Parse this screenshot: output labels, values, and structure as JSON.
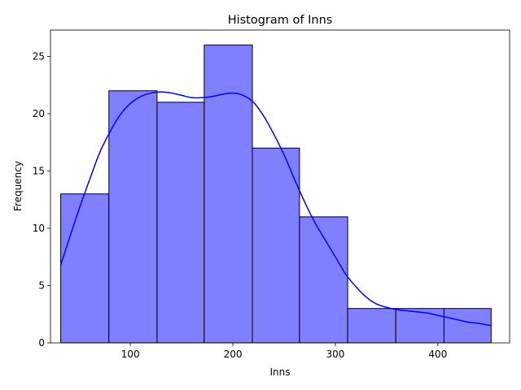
{
  "chart_data": {
    "type": "bar",
    "title": "Histogram of Inns",
    "xlabel": "Inns",
    "ylabel": "Frequency",
    "xlim": [
      22,
      470
    ],
    "ylim": [
      0,
      27.3
    ],
    "xticks": [
      100,
      200,
      300,
      400
    ],
    "yticks": [
      0,
      5,
      10,
      15,
      20,
      25
    ],
    "grid": false,
    "bins": [
      {
        "x0": 32,
        "x1": 79,
        "count": 13
      },
      {
        "x0": 79,
        "x1": 126,
        "count": 22
      },
      {
        "x0": 126,
        "x1": 172,
        "count": 21
      },
      {
        "x0": 172,
        "x1": 219,
        "count": 26
      },
      {
        "x0": 219,
        "x1": 265,
        "count": 17
      },
      {
        "x0": 265,
        "x1": 312,
        "count": 11
      },
      {
        "x0": 312,
        "x1": 359,
        "count": 3
      },
      {
        "x0": 359,
        "x1": 406,
        "count": 3
      },
      {
        "x0": 406,
        "x1": 452,
        "count": 3
      }
    ],
    "kde": {
      "x": [
        32,
        40,
        50,
        60,
        70,
        80,
        90,
        100,
        110,
        120,
        130,
        140,
        150,
        160,
        170,
        180,
        190,
        200,
        210,
        220,
        230,
        240,
        250,
        260,
        270,
        280,
        290,
        300,
        310,
        320,
        330,
        340,
        350,
        360,
        370,
        380,
        390,
        400,
        410,
        420,
        430,
        440,
        452
      ],
      "y": [
        6.8,
        9.0,
        11.7,
        14.2,
        16.6,
        18.4,
        19.9,
        20.9,
        21.5,
        21.8,
        21.9,
        21.8,
        21.6,
        21.4,
        21.4,
        21.5,
        21.7,
        21.8,
        21.6,
        21.0,
        19.8,
        18.2,
        16.4,
        14.3,
        12.3,
        10.5,
        9.0,
        7.5,
        6.0,
        4.9,
        4.0,
        3.4,
        3.1,
        2.9,
        2.8,
        2.7,
        2.6,
        2.4,
        2.2,
        2.0,
        1.8,
        1.7,
        1.5
      ]
    },
    "bar_color": "#8080ff",
    "bar_edge_color": "#000000",
    "kde_color": "#0000ff"
  }
}
